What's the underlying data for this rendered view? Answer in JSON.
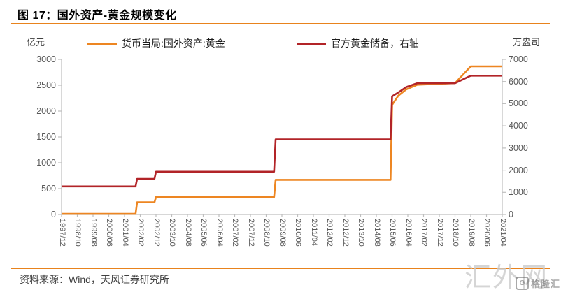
{
  "header": {
    "title": "图 17：国外资产-黄金规模变化"
  },
  "footer": {
    "source": "资料来源：Wind，天风证券研究所"
  },
  "watermark": {
    "big": "汇外网",
    "badge": "格隆汇",
    "badge_icon": "G"
  },
  "colors": {
    "accent_orange": "#E8831D",
    "series_gold_assets": "#ED8622",
    "series_gold_reserves": "#B22428",
    "axis_line": "#BFBFBF",
    "tick_text": "#595959"
  },
  "chart_data": {
    "type": "line",
    "title": "国外资产-黄金规模变化",
    "grid": false,
    "legend_position": "top",
    "left_axis": {
      "unit": "亿元",
      "min": 0,
      "max": 3000,
      "ticks": [
        0,
        500,
        1000,
        1500,
        2000,
        2500,
        3000
      ]
    },
    "right_axis": {
      "unit": "万盎司",
      "min": 0,
      "max": 7000,
      "ticks": [
        0,
        1000,
        2000,
        3000,
        4000,
        5000,
        6000,
        7000
      ]
    },
    "x_axis": {
      "start": "1997/12",
      "end": "2021/04",
      "labels": [
        "1997/12",
        "1998/10",
        "1999/08",
        "2000/06",
        "2001/04",
        "2002/02",
        "2002/12",
        "2003/10",
        "2004/08",
        "2005/06",
        "2006/04",
        "2007/02",
        "2007/12",
        "2008/10",
        "2009/08",
        "2010/06",
        "2011/04",
        "2012/02",
        "2012/12",
        "2013/10",
        "2014/08",
        "2015/06",
        "2016/04",
        "2017/02",
        "2017/12",
        "2018/10",
        "2019/08",
        "2020/06",
        "2021/04"
      ]
    },
    "series": [
      {
        "name": "货币当局:国外资产:黄金",
        "axis": "left",
        "unit": "亿元",
        "color": "#ED8622",
        "points": [
          [
            "1997/12",
            12
          ],
          [
            "2001/11",
            12
          ],
          [
            "2001/12",
            235
          ],
          [
            "2002/11",
            235
          ],
          [
            "2002/12",
            337
          ],
          [
            "2009/03",
            337
          ],
          [
            "2009/04",
            670
          ],
          [
            "2015/05",
            670
          ],
          [
            "2015/06",
            2120
          ],
          [
            "2015/10",
            2300
          ],
          [
            "2016/03",
            2420
          ],
          [
            "2016/10",
            2510
          ],
          [
            "2018/10",
            2540
          ],
          [
            "2019/08",
            2865
          ],
          [
            "2021/04",
            2865
          ]
        ]
      },
      {
        "name": "官方黄金储备，右轴",
        "axis": "right",
        "unit": "万盎司",
        "color": "#B22428",
        "points": [
          [
            "1997/12",
            1267
          ],
          [
            "2001/11",
            1267
          ],
          [
            "2001/12",
            1608
          ],
          [
            "2002/11",
            1608
          ],
          [
            "2002/12",
            1929
          ],
          [
            "2009/03",
            1929
          ],
          [
            "2009/04",
            3389
          ],
          [
            "2015/05",
            3389
          ],
          [
            "2015/06",
            5332
          ],
          [
            "2015/10",
            5510
          ],
          [
            "2016/03",
            5750
          ],
          [
            "2016/10",
            5924
          ],
          [
            "2018/10",
            5924
          ],
          [
            "2019/08",
            6264
          ],
          [
            "2021/04",
            6264
          ]
        ]
      }
    ]
  }
}
